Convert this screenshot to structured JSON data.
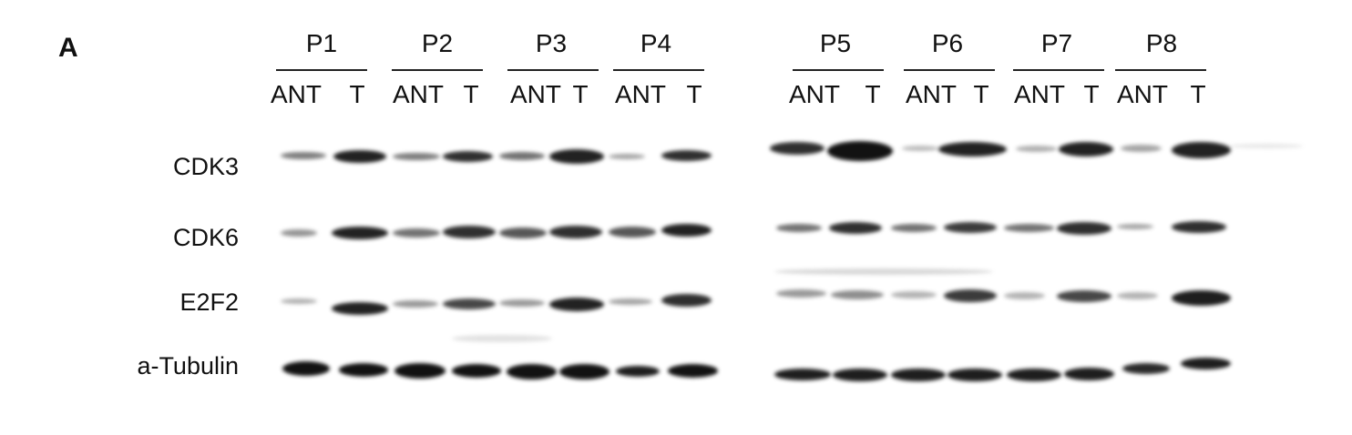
{
  "figure": {
    "panel_label": "A",
    "patients": [
      "P1",
      "P2",
      "P3",
      "P4",
      "P5",
      "P6",
      "P7",
      "P8"
    ],
    "lane_labels": [
      "ANT",
      "T"
    ],
    "proteins": [
      "CDK3",
      "CDK6",
      "E2F2",
      "a-Tubulin"
    ]
  }
}
